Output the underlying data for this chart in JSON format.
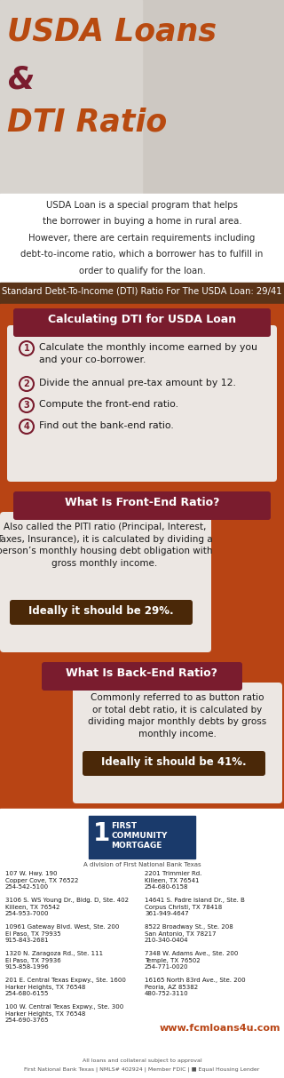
{
  "title_line1": "USDA Loans",
  "title_line2": "&",
  "title_line3": "DTI Ratio",
  "title_color1": "#b84a10",
  "title_color2": "#7a1c2e",
  "bg_header": "#d0ccc8",
  "bg_white": "#ffffff",
  "bg_light_gray": "#e8e4e0",
  "bg_orange": "#b84414",
  "bg_dti_banner": "#5a3318",
  "bg_calc_title": "#7a1c2e",
  "bg_ideal": "#4a2808",
  "intro_text1": "USDA Loan is a special program that helps",
  "intro_text2": "the borrower in buying a home in rural area.",
  "intro_text3": "However, there are certain requirements including",
  "intro_text4": "debt-to-income ratio, which a borrower has to fulfill in",
  "intro_text5": "order to qualify for the loan.",
  "dti_banner": "Standard Debt-To-Income (DTI) Ratio For The USDA Loan: 29/41",
  "calc_title": "Calculating DTI for USDA Loan",
  "calc_steps": [
    "Calculate the monthly income earned by you\nand your co-borrower.",
    "Divide the annual pre-tax amount by 12.",
    "Compute the front-end ratio.",
    "Find out the bank-end ratio."
  ],
  "front_title": "What Is Front-End Ratio?",
  "front_text": "Also called the PITI ratio (Principal, Interest,\nTaxes, Insurance), it is calculated by dividing a\nperson’s monthly housing debt obligation with\ngross monthly income.",
  "front_ideal": "Ideally it should be 29%.",
  "back_title": "What Is Back-End Ratio?",
  "back_text": "Commonly referred to as button ratio\nor total debt ratio, it is calculated by\ndividing major monthly debts by gross\nmonthly income.",
  "back_ideal": "Ideally it should be 41%.",
  "contact_col1": [
    "107 W. Hwy. 190\nCopper Cove, TX 76522\n254-542-5100",
    "3106 S. WS Young Dr., Bldg. D, Ste. 402\nKilleen, TX 76542\n254-953-7000",
    "10961 Gateway Blvd. West, Ste. 200\nEl Paso, TX 79935\n915-843-2681",
    "1320 N. Zaragoza Rd., Ste. 111\nEl Paso, TX 79936\n915-858-1996",
    "201 E. Central Texas Expwy., Ste. 1600\nHarker Heights, TX 76548\n254-680-6155",
    "100 W. Central Texas Expwy., Ste. 300\nHarker Heights, TX 76548\n254-690-3765"
  ],
  "contact_col2": [
    "2201 Trimmier Rd.\nKilleen, TX 76541\n254-680-6158",
    "14641 S. Padre Island Dr., Ste. B\nCorpus Christi, TX 78418\n361-949-4647",
    "8522 Broadway St., Ste. 208\nSan Antonio, TX 78217\n210-340-0404",
    "7348 W. Adams Ave., Ste. 200\nTemple, TX 76502\n254-771-0020",
    "16165 North 83rd Ave., Ste. 200\nPeoria, AZ 85382\n480-752-3110",
    ""
  ],
  "website": "www.fcmloans4u.com",
  "disclaimer1": "All loans and collateral subject to approval",
  "disclaimer2": "First National Bank Texas | NMLS# 402924 | Member FDIC | ■ Equal Housing Lender"
}
